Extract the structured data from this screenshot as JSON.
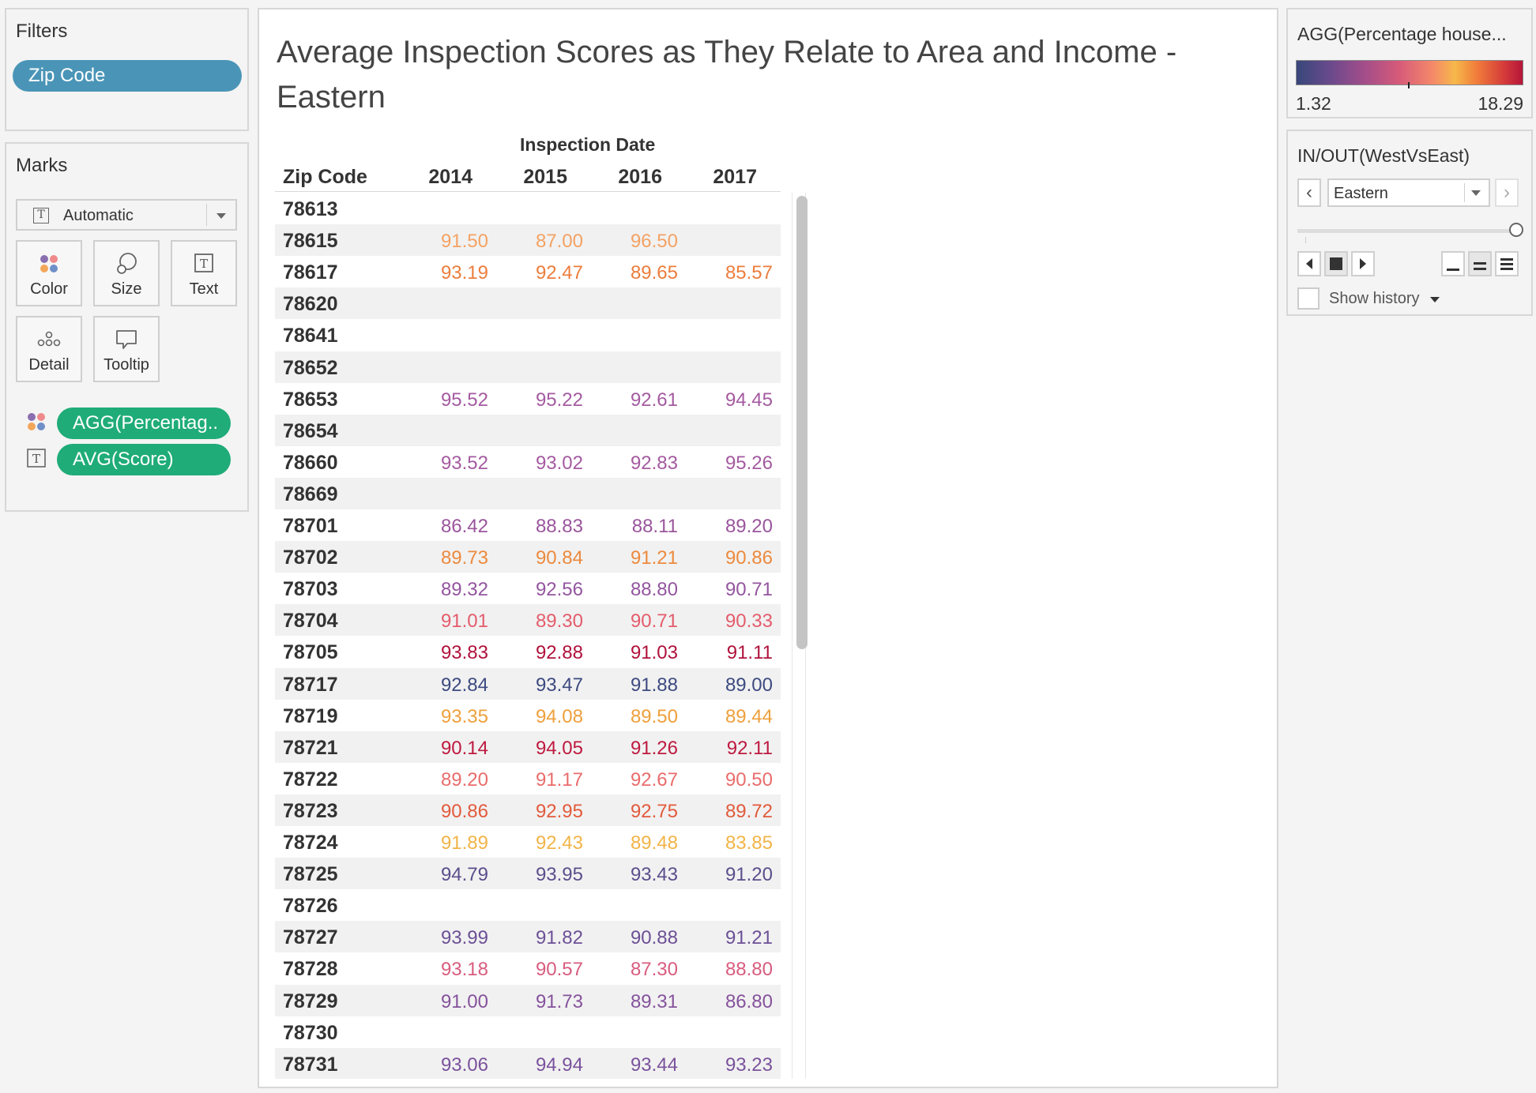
{
  "filters": {
    "title": "Filters",
    "pills": [
      "Zip Code"
    ]
  },
  "marks": {
    "title": "Marks",
    "mark_type": "Automatic",
    "buttons": [
      {
        "label": "Color",
        "icon": "color-icon"
      },
      {
        "label": "Size",
        "icon": "size-icon"
      },
      {
        "label": "Text",
        "icon": "text-icon"
      },
      {
        "label": "Detail",
        "icon": "detail-icon"
      },
      {
        "label": "Tooltip",
        "icon": "tooltip-icon"
      }
    ],
    "shelf": [
      {
        "label": "AGG(Percentag..",
        "icon": "color-icon"
      },
      {
        "label": "AVG(Score)",
        "icon": "text-icon"
      }
    ]
  },
  "view": {
    "title": "Average Inspection Scores as They Relate to Area and Income - Eastern",
    "column_group": "Inspection Date",
    "row_header": "Zip Code",
    "years": [
      "2014",
      "2015",
      "2016",
      "2017"
    ],
    "rows": [
      {
        "zip": "78613",
        "values": [
          "",
          "",
          "",
          ""
        ],
        "colors": [
          "",
          "",
          "",
          ""
        ]
      },
      {
        "zip": "78615",
        "values": [
          "91.50",
          "87.00",
          "96.50",
          ""
        ],
        "colors": [
          "#f4a264",
          "#f4a264",
          "#f4a264",
          ""
        ]
      },
      {
        "zip": "78617",
        "values": [
          "93.19",
          "92.47",
          "89.65",
          "85.57"
        ],
        "colors": [
          "#ec7d3c",
          "#ec7d3c",
          "#ec7d3c",
          "#ec7d3c"
        ]
      },
      {
        "zip": "78620",
        "values": [
          "",
          "",
          "",
          ""
        ],
        "colors": [
          "",
          "",
          "",
          ""
        ]
      },
      {
        "zip": "78641",
        "values": [
          "",
          "",
          "",
          ""
        ],
        "colors": [
          "",
          "",
          "",
          ""
        ]
      },
      {
        "zip": "78652",
        "values": [
          "",
          "",
          "",
          ""
        ],
        "colors": [
          "",
          "",
          "",
          ""
        ]
      },
      {
        "zip": "78653",
        "values": [
          "95.52",
          "95.22",
          "92.61",
          "94.45"
        ],
        "colors": [
          "#a45aa0",
          "#a45aa0",
          "#a45aa0",
          "#a45aa0"
        ]
      },
      {
        "zip": "78654",
        "values": [
          "",
          "",
          "",
          ""
        ],
        "colors": [
          "",
          "",
          "",
          ""
        ]
      },
      {
        "zip": "78660",
        "values": [
          "93.52",
          "93.02",
          "92.83",
          "95.26"
        ],
        "colors": [
          "#a45aa0",
          "#a45aa0",
          "#a45aa0",
          "#a45aa0"
        ]
      },
      {
        "zip": "78669",
        "values": [
          "",
          "",
          "",
          ""
        ],
        "colors": [
          "",
          "",
          "",
          ""
        ]
      },
      {
        "zip": "78701",
        "values": [
          "86.42",
          "88.83",
          "88.11",
          "89.20"
        ],
        "colors": [
          "#9a559c",
          "#9a559c",
          "#9a559c",
          "#9a559c"
        ]
      },
      {
        "zip": "78702",
        "values": [
          "89.73",
          "90.84",
          "91.21",
          "90.86"
        ],
        "colors": [
          "#ec8a3e",
          "#ec8a3e",
          "#ec8a3e",
          "#ec8a3e"
        ]
      },
      {
        "zip": "78703",
        "values": [
          "89.32",
          "92.56",
          "88.80",
          "90.71"
        ],
        "colors": [
          "#93559e",
          "#93559e",
          "#93559e",
          "#93559e"
        ]
      },
      {
        "zip": "78704",
        "values": [
          "91.01",
          "89.30",
          "90.71",
          "90.33"
        ],
        "colors": [
          "#e45c6c",
          "#e45c6c",
          "#e45c6c",
          "#e45c6c"
        ]
      },
      {
        "zip": "78705",
        "values": [
          "93.83",
          "92.88",
          "91.03",
          "91.11"
        ],
        "colors": [
          "#b0123c",
          "#b0123c",
          "#b0123c",
          "#b0123c"
        ]
      },
      {
        "zip": "78717",
        "values": [
          "92.84",
          "93.47",
          "91.88",
          "89.00"
        ],
        "colors": [
          "#3d4a80",
          "#3d4a80",
          "#3d4a80",
          "#3d4a80"
        ]
      },
      {
        "zip": "78719",
        "values": [
          "93.35",
          "94.08",
          "89.50",
          "89.44"
        ],
        "colors": [
          "#eea03c",
          "#eea03c",
          "#eea03c",
          "#eea03c"
        ]
      },
      {
        "zip": "78721",
        "values": [
          "90.14",
          "94.05",
          "91.26",
          "92.11"
        ],
        "colors": [
          "#be1a40",
          "#be1a40",
          "#be1a40",
          "#be1a40"
        ]
      },
      {
        "zip": "78722",
        "values": [
          "89.20",
          "91.17",
          "92.67",
          "90.50"
        ],
        "colors": [
          "#ea6c6c",
          "#ea6c6c",
          "#ea6c6c",
          "#ea6c6c"
        ]
      },
      {
        "zip": "78723",
        "values": [
          "90.86",
          "92.95",
          "92.75",
          "89.72"
        ],
        "colors": [
          "#e25a3c",
          "#e25a3c",
          "#e25a3c",
          "#e25a3c"
        ]
      },
      {
        "zip": "78724",
        "values": [
          "91.89",
          "92.43",
          "89.48",
          "83.85"
        ],
        "colors": [
          "#f2b448",
          "#f2b448",
          "#f2b448",
          "#f2b448"
        ]
      },
      {
        "zip": "78725",
        "values": [
          "94.79",
          "93.95",
          "93.43",
          "91.20"
        ],
        "colors": [
          "#5b4e8c",
          "#5b4e8c",
          "#5b4e8c",
          "#5b4e8c"
        ]
      },
      {
        "zip": "78726",
        "values": [
          "",
          "",
          "",
          ""
        ],
        "colors": [
          "",
          "",
          "",
          ""
        ]
      },
      {
        "zip": "78727",
        "values": [
          "93.99",
          "91.82",
          "90.88",
          "91.21"
        ],
        "colors": [
          "#6c5096",
          "#6c5096",
          "#6c5096",
          "#6c5096"
        ]
      },
      {
        "zip": "78728",
        "values": [
          "93.18",
          "90.57",
          "87.30",
          "88.80"
        ],
        "colors": [
          "#d85c7e",
          "#d85c7e",
          "#d85c7e",
          "#d85c7e"
        ]
      },
      {
        "zip": "78729",
        "values": [
          "91.00",
          "91.73",
          "89.31",
          "86.80"
        ],
        "colors": [
          "#85529c",
          "#85529c",
          "#85529c",
          "#85529c"
        ]
      },
      {
        "zip": "78730",
        "values": [
          "",
          "",
          "",
          ""
        ],
        "colors": [
          "",
          "",
          "",
          ""
        ]
      },
      {
        "zip": "78731",
        "values": [
          "93.06",
          "94.94",
          "93.44",
          "93.23"
        ],
        "colors": [
          "#7a529c",
          "#7a529c",
          "#7a529c",
          "#7a529c"
        ]
      }
    ]
  },
  "legend": {
    "title": "AGG(Percentage house...",
    "min": "1.32",
    "max": "18.29"
  },
  "parameter": {
    "title": "IN/OUT(WestVsEast)",
    "value": "Eastern",
    "show_history": "Show history"
  }
}
